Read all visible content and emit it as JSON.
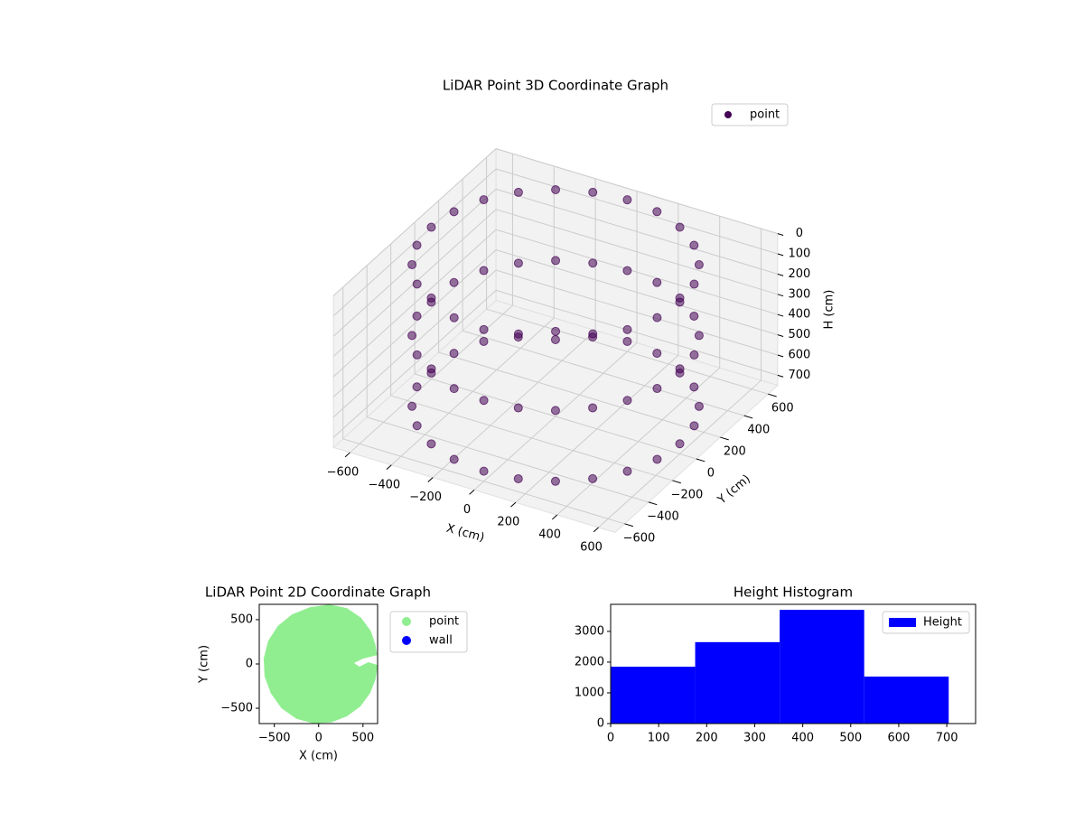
{
  "chart_data": [
    {
      "type": "scatter3d",
      "title": "LiDAR Point 3D Coordinate Graph",
      "x_label": "X (cm)",
      "y_label": "Y (cm)",
      "z_label": "H (cm)",
      "xlim": [
        -680,
        680
      ],
      "ylim": [
        -680,
        680
      ],
      "zlim": [
        0,
        750
      ],
      "z_inverted": true,
      "xticks": [
        {
          "value": -600,
          "label": "−600"
        },
        {
          "value": -400,
          "label": "−400"
        },
        {
          "value": -200,
          "label": "−200"
        },
        0,
        200,
        400,
        600
      ],
      "yticks": [
        {
          "value": -600,
          "label": "−600"
        },
        {
          "value": -400,
          "label": "−400"
        },
        {
          "value": -200,
          "label": "−200"
        },
        0,
        200,
        400,
        600
      ],
      "zticks": [
        0,
        100,
        200,
        300,
        400,
        500,
        600,
        700
      ],
      "grid": true,
      "legend": "upper right",
      "series": [
        {
          "name": "point",
          "color": "#440154",
          "x": [
            600,
            580,
            520,
            424,
            300,
            155,
            0,
            -155,
            -300,
            -424,
            -520,
            -580,
            -600,
            -580,
            -520,
            -424,
            -300,
            -155,
            0,
            155,
            300,
            424,
            520,
            580,
            600,
            580,
            520,
            424,
            300,
            155,
            0,
            -155,
            -300,
            -424,
            -520,
            -580,
            -600,
            -580,
            -520,
            -424,
            -300,
            -155,
            0,
            155,
            300,
            424,
            520,
            580,
            600,
            580,
            520,
            424,
            300,
            155,
            0,
            -155,
            -300,
            -424,
            -520,
            -580,
            -600,
            -580,
            -520,
            -424,
            -300,
            -155,
            0,
            155,
            300,
            424,
            520,
            580
          ],
          "y": [
            0,
            155,
            300,
            424,
            520,
            580,
            600,
            580,
            520,
            424,
            300,
            155,
            0,
            -155,
            -300,
            -424,
            -520,
            -580,
            -600,
            -580,
            -520,
            -424,
            -300,
            -155,
            0,
            155,
            300,
            424,
            520,
            580,
            600,
            580,
            520,
            424,
            300,
            155,
            0,
            -155,
            -300,
            -424,
            -520,
            -580,
            -600,
            -580,
            -520,
            -424,
            -300,
            -155,
            0,
            155,
            300,
            424,
            520,
            580,
            600,
            580,
            520,
            424,
            300,
            155,
            0,
            -155,
            -300,
            -424,
            -520,
            -580,
            -600,
            -580,
            -520,
            -424,
            -300,
            -155
          ],
          "z": [
            0,
            0,
            0,
            0,
            0,
            0,
            0,
            0,
            0,
            0,
            0,
            0,
            0,
            0,
            0,
            0,
            0,
            0,
            0,
            0,
            0,
            0,
            0,
            0,
            350,
            350,
            350,
            350,
            350,
            350,
            350,
            350,
            350,
            350,
            350,
            350,
            350,
            350,
            350,
            350,
            350,
            350,
            350,
            350,
            350,
            350,
            350,
            350,
            700,
            700,
            700,
            700,
            700,
            700,
            700,
            700,
            700,
            700,
            700,
            700,
            700,
            700,
            700,
            700,
            700,
            700,
            700,
            700,
            700,
            700,
            700,
            700
          ]
        }
      ]
    },
    {
      "type": "scatter",
      "title": "LiDAR Point 2D Coordinate Graph",
      "x_label": "X (cm)",
      "y_label": "Y (cm)",
      "xlim": [
        -670,
        665
      ],
      "ylim": [
        -673,
        673
      ],
      "xticks": [
        {
          "value": -500,
          "label": "−500"
        },
        0,
        500
      ],
      "yticks": [
        {
          "value": -500,
          "label": "−500"
        },
        0,
        500
      ],
      "legend": "outside upper right",
      "series": [
        {
          "name": "point",
          "color": "#90ee90",
          "x": [
            660,
            640,
            580,
            470,
            320,
            140,
            -60,
            -250,
            -420,
            -540,
            -610,
            -620,
            -570,
            -460,
            -300,
            -100,
            120,
            320,
            480,
            590,
            640,
            660,
            500,
            400,
            460,
            560,
            660
          ],
          "y": [
            -60,
            -180,
            -330,
            -480,
            -590,
            -660,
            -670,
            -620,
            -500,
            -330,
            -140,
            60,
            260,
            430,
            560,
            640,
            670,
            630,
            520,
            370,
            220,
            100,
            60,
            10,
            -30,
            20,
            -10
          ]
        },
        {
          "name": "wall",
          "color": "#0000ff",
          "x": [],
          "y": []
        }
      ]
    },
    {
      "type": "histogram",
      "title": "Height Histogram",
      "bins": [
        0,
        176,
        352,
        528,
        704
      ],
      "values": [
        1850,
        2650,
        3700,
        1530
      ],
      "xlim": [
        0,
        760
      ],
      "ylim": [
        0,
        3880
      ],
      "xticks": [
        0,
        100,
        200,
        300,
        400,
        500,
        600,
        700
      ],
      "yticks": [
        0,
        1000,
        2000,
        3000
      ],
      "legend": "upper right",
      "series_name": "Height",
      "color": "#0000ff"
    }
  ]
}
